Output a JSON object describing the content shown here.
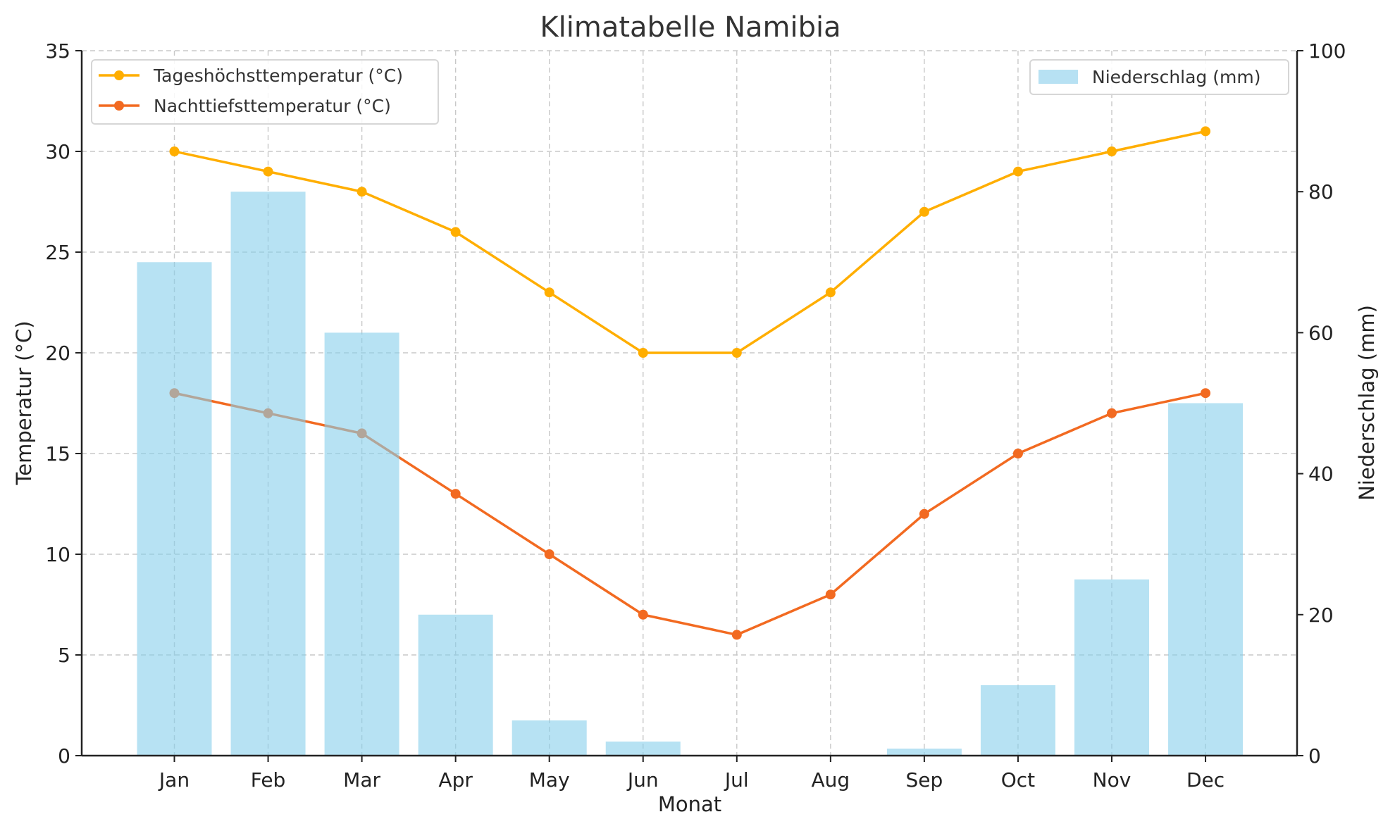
{
  "chart_data": {
    "type": "bar+line",
    "title": "Klimatabelle Namibia",
    "xlabel": "Monat",
    "ylabel_left": "Temperatur (°C)",
    "ylabel_right": "Niederschlag (mm)",
    "categories": [
      "Jan",
      "Feb",
      "Mar",
      "Apr",
      "May",
      "Jun",
      "Jul",
      "Aug",
      "Sep",
      "Oct",
      "Nov",
      "Dec"
    ],
    "ylim_left": [
      0,
      35
    ],
    "ylim_right": [
      0,
      100
    ],
    "yticks_left": [
      0,
      5,
      10,
      15,
      20,
      25,
      30,
      35
    ],
    "yticks_right": [
      0,
      20,
      40,
      60,
      80,
      100
    ],
    "grid": true,
    "series": [
      {
        "name": "Tageshöchsttemperatur (°C)",
        "type": "line",
        "axis": "left",
        "color": "#FFAE00",
        "values": [
          30,
          29,
          28,
          26,
          23,
          20,
          20,
          23,
          27,
          29,
          30,
          31
        ]
      },
      {
        "name": "Nachttiefsttemperatur (°C)",
        "type": "line",
        "axis": "left",
        "color": "#F26A21",
        "values": [
          18,
          17,
          16,
          13,
          10,
          7,
          6,
          8,
          12,
          15,
          17,
          18
        ]
      },
      {
        "name": "Niederschlag (mm)",
        "type": "bar",
        "axis": "right",
        "color": "#87CEEB",
        "values": [
          70,
          80,
          60,
          20,
          5,
          2,
          0,
          0,
          1,
          10,
          25,
          50
        ]
      }
    ],
    "legend_lines": "top-left",
    "legend_bars": "top-right"
  }
}
